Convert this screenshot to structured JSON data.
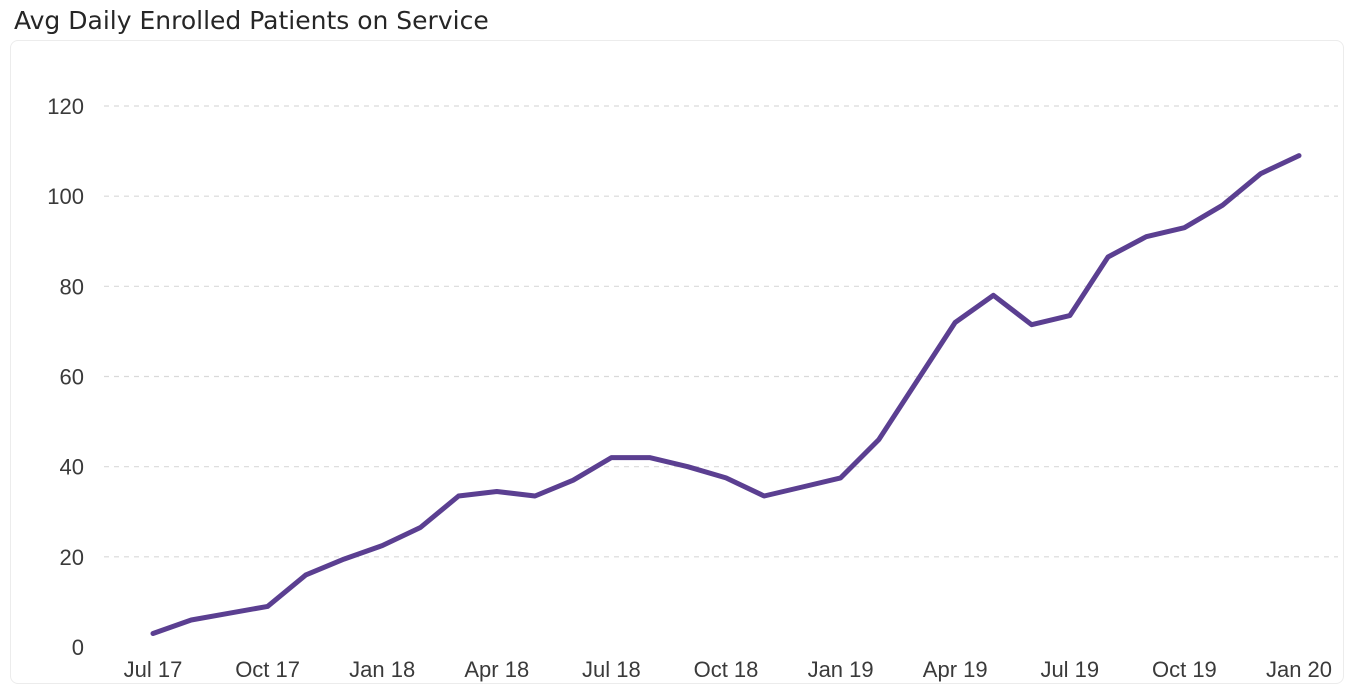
{
  "title": "Avg Daily Enrolled Patients on Service",
  "colors": {
    "line": "#5b3f91",
    "grid": "#d9d9d9",
    "tick_text": "#3a3a3a",
    "title_text": "#262626"
  },
  "chart_data": {
    "type": "line",
    "title": "Avg Daily Enrolled Patients on Service",
    "xlabel": "",
    "ylabel": "",
    "ylim": [
      0,
      120
    ],
    "y_ticks": [
      0,
      20,
      40,
      60,
      80,
      100,
      120
    ],
    "x_ticks": [
      "Jul 17",
      "Oct 17",
      "Jan 18",
      "Apr 18",
      "Jul 18",
      "Oct 18",
      "Jan 19",
      "Apr 19",
      "Jul 19",
      "Oct 19",
      "Jan 20"
    ],
    "grid": "horizontal-dashed",
    "legend": "none",
    "x": [
      "Jul 17",
      "Aug 17",
      "Sep 17",
      "Oct 17",
      "Nov 17",
      "Dec 17",
      "Jan 18",
      "Feb 18",
      "Mar 18",
      "Apr 18",
      "May 18",
      "Jun 18",
      "Jul 18",
      "Aug 18",
      "Sep 18",
      "Oct 18",
      "Nov 18",
      "Dec 18",
      "Jan 19",
      "Feb 19",
      "Mar 19",
      "Apr 19",
      "May 19",
      "Jun 19",
      "Jul 19",
      "Aug 19",
      "Sep 19",
      "Oct 19",
      "Nov 19",
      "Dec 19",
      "Jan 20"
    ],
    "series": [
      {
        "values": [
          3,
          6,
          7.5,
          9,
          16,
          19.5,
          22.5,
          26.5,
          33.5,
          34.5,
          33.5,
          37,
          42,
          42,
          40,
          37.5,
          33.5,
          35.5,
          37.5,
          46,
          59,
          72,
          78,
          71.5,
          73.5,
          86.5,
          91,
          93,
          98,
          105,
          109
        ]
      }
    ]
  }
}
